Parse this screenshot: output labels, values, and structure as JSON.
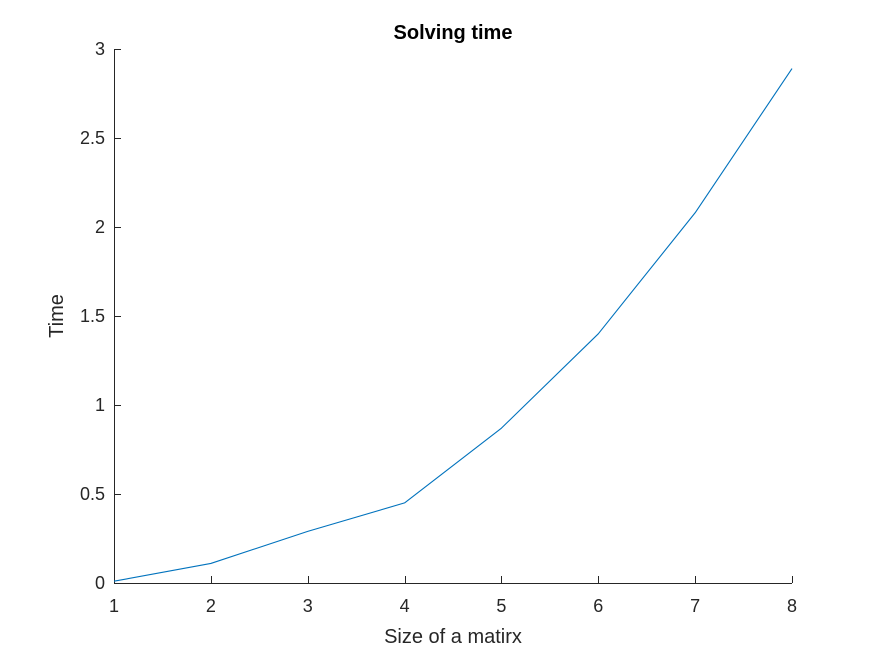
{
  "chart_data": {
    "type": "line",
    "title": "Solving time",
    "xlabel": "Size of a matirx",
    "ylabel": "Time",
    "xlim": [
      1,
      8
    ],
    "ylim": [
      0,
      3
    ],
    "x_ticks": [
      1,
      2,
      3,
      4,
      5,
      6,
      7,
      8
    ],
    "x_tick_labels": [
      "1",
      "2",
      "3",
      "4",
      "5",
      "6",
      "7",
      "8"
    ],
    "y_ticks": [
      0,
      0.5,
      1,
      1.5,
      2,
      2.5,
      3
    ],
    "y_tick_labels": [
      "0",
      "0.5",
      "1",
      "1.5",
      "2",
      "2.5",
      "3"
    ],
    "grid": false,
    "legend": "none",
    "series_color": "#0072BD",
    "series": [
      {
        "x": [
          1,
          2,
          3,
          4,
          5,
          6,
          7,
          8
        ],
        "values": [
          0.01,
          0.11,
          0.29,
          0.45,
          0.87,
          1.4,
          2.08,
          2.89
        ]
      }
    ]
  }
}
